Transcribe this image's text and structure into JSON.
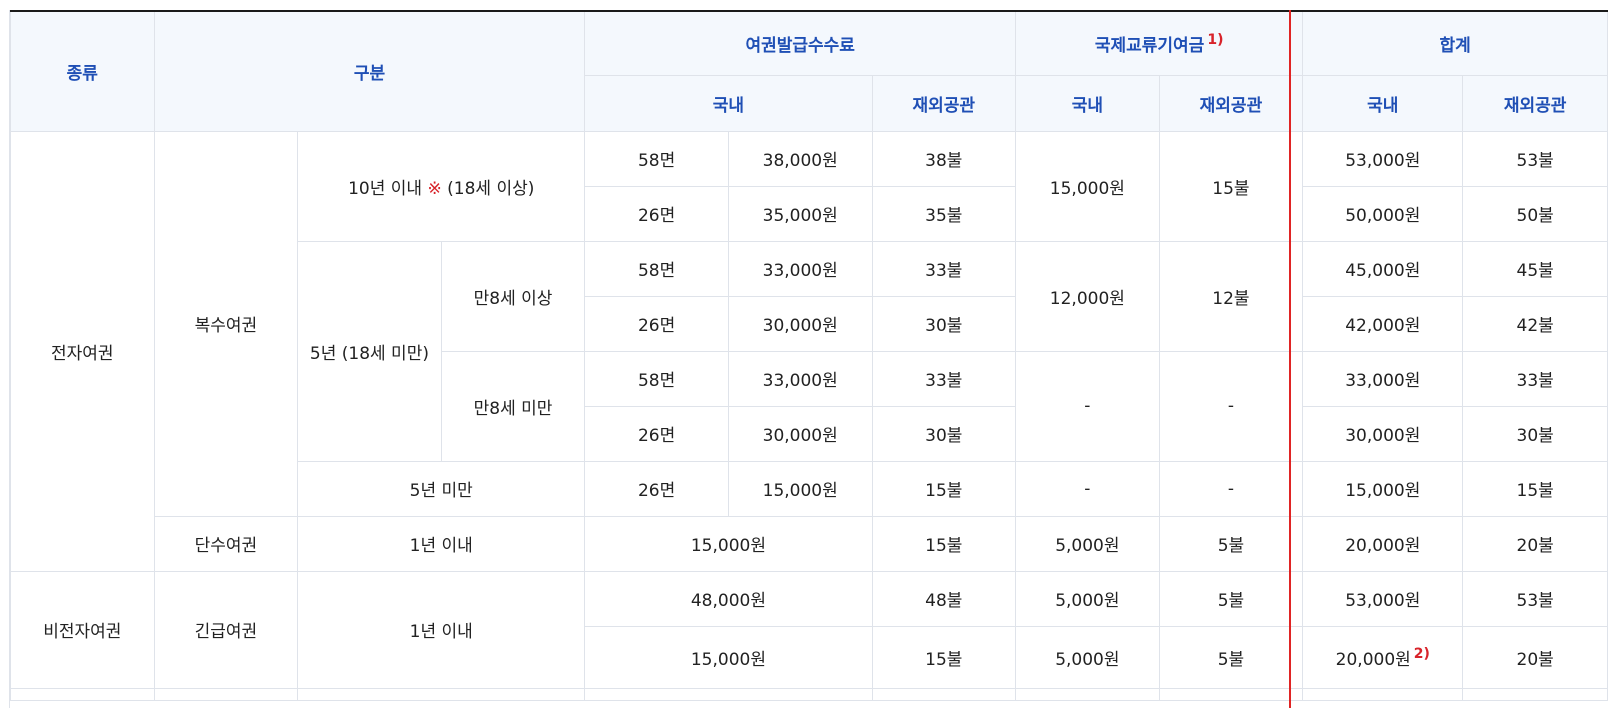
{
  "header": {
    "type": "종류",
    "category": "구분",
    "issue_fee": "여권발급수수료",
    "intl_fund": "국제교류기여금",
    "intl_fund_note": "1)",
    "total": "합계",
    "domestic": "국내",
    "overseas": "재외공관"
  },
  "rows": {
    "electronic": "전자여권",
    "multiple": "복수여권",
    "ten_year": "10년 이내",
    "ten_year_mark": "※",
    "ten_year_age": "(18세 이상)",
    "five_year": "5년 (18세 미만)",
    "age8_over": "만8세 이상",
    "age8_under": "만8세 미만",
    "under5": "5년 미만",
    "single": "단수여권",
    "within1": "1년 이내",
    "nonelectronic": "비전자여권",
    "emergency": "긴급여권",
    "emergency_within1": "1년 이내"
  },
  "r1": {
    "pages": "58면",
    "fee": "38,000원",
    "fee_o": "38불",
    "fund": "15,000원",
    "fund_o": "15불",
    "total": "53,000원",
    "total_o": "53불"
  },
  "r2": {
    "pages": "26면",
    "fee": "35,000원",
    "fee_o": "35불",
    "total": "50,000원",
    "total_o": "50불"
  },
  "r3": {
    "pages": "58면",
    "fee": "33,000원",
    "fee_o": "33불",
    "fund": "12,000원",
    "fund_o": "12불",
    "total": "45,000원",
    "total_o": "45불"
  },
  "r4": {
    "pages": "26면",
    "fee": "30,000원",
    "fee_o": "30불",
    "total": "42,000원",
    "total_o": "42불"
  },
  "r5": {
    "pages": "58면",
    "fee": "33,000원",
    "fee_o": "33불",
    "fund": "-",
    "fund_o": "-",
    "total": "33,000원",
    "total_o": "33불"
  },
  "r6": {
    "pages": "26면",
    "fee": "30,000원",
    "fee_o": "30불",
    "total": "30,000원",
    "total_o": "30불"
  },
  "r7": {
    "pages": "26면",
    "fee": "15,000원",
    "fee_o": "15불",
    "fund": "-",
    "fund_o": "-",
    "total": "15,000원",
    "total_o": "15불"
  },
  "r8": {
    "fee": "15,000원",
    "fee_o": "15불",
    "fund": "5,000원",
    "fund_o": "5불",
    "total": "20,000원",
    "total_o": "20불"
  },
  "r9": {
    "fee": "48,000원",
    "fee_o": "48불",
    "fund": "5,000원",
    "fund_o": "5불",
    "total": "53,000원",
    "total_o": "53불"
  },
  "r10": {
    "fee": "15,000원",
    "fee_o": "15불",
    "fund": "5,000원",
    "fund_o": "5불",
    "total": "20,000원",
    "total_note": "2)",
    "total_o": "20불"
  },
  "colors": {
    "header_text": "#1f4fb5",
    "header_bg": "#f4f8fd",
    "note_red": "#d8232a",
    "divider_red": "#e02424"
  }
}
